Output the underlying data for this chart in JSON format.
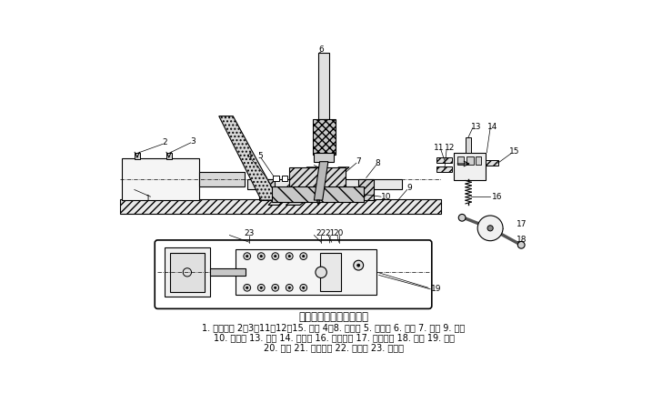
{
  "title": "气动夹紧连续钻孔装置图",
  "caption_line1": "1. 驱动气缸 2、3、11、12、15. 气嘴 4、8. 夹紧块 5. 支撑架 6. 钻头 7. 工件 9. 垫板",
  "caption_line2": "10. 支撑板 13. 顶杆 14. 换向阀 16. 回程弹簧 17. 钻床手柄 18. 凸轮 19. 螺钉",
  "caption_line3": "20. 螺杆 21. 退料簧片 22. 导向块 23. 活塞杆",
  "bg_color": "#ffffff"
}
